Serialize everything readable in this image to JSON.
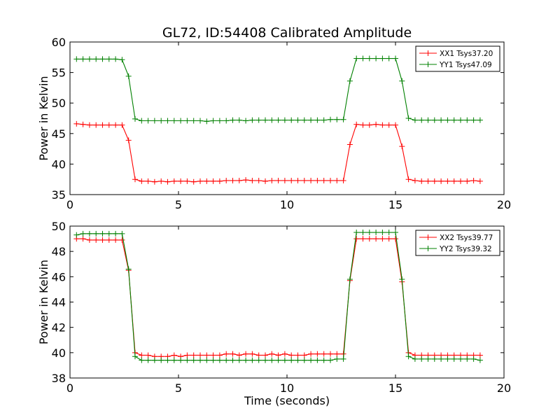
{
  "figure": {
    "title": "GL72, ID:54408 Calibrated Amplitude",
    "background": "#ffffff"
  },
  "chart_data": [
    {
      "type": "line",
      "title": "GL72, ID:54408 Calibrated Amplitude",
      "xlabel": "",
      "ylabel": "Power in Kelvin",
      "xlim": [
        0,
        20
      ],
      "ylim": [
        35,
        60
      ],
      "xticks": [
        0,
        5,
        10,
        15,
        20
      ],
      "yticks": [
        35,
        40,
        45,
        50,
        55,
        60
      ],
      "grid": false,
      "legend_position": "top-right",
      "marker": "plus",
      "x": [
        0.3,
        0.6,
        0.9,
        1.2,
        1.5,
        1.8,
        2.1,
        2.4,
        2.7,
        3.0,
        3.3,
        3.6,
        3.9,
        4.2,
        4.5,
        4.8,
        5.1,
        5.4,
        5.7,
        6.0,
        6.3,
        6.6,
        6.9,
        7.2,
        7.5,
        7.8,
        8.1,
        8.4,
        8.7,
        9.0,
        9.3,
        9.6,
        9.9,
        10.2,
        10.5,
        10.8,
        11.1,
        11.4,
        11.7,
        12.0,
        12.3,
        12.6,
        12.9,
        13.2,
        13.5,
        13.8,
        14.1,
        14.4,
        14.7,
        15.0,
        15.3,
        15.6,
        15.9,
        16.2,
        16.5,
        16.8,
        17.1,
        17.4,
        17.7,
        18.0,
        18.3,
        18.6,
        18.9
      ],
      "series": [
        {
          "name": "XX1 Tsys37.20",
          "color": "#ff0000",
          "values": [
            46.6,
            46.5,
            46.4,
            46.4,
            46.4,
            46.4,
            46.4,
            46.4,
            43.9,
            37.5,
            37.2,
            37.2,
            37.1,
            37.2,
            37.1,
            37.2,
            37.2,
            37.2,
            37.1,
            37.2,
            37.2,
            37.2,
            37.2,
            37.3,
            37.3,
            37.3,
            37.4,
            37.3,
            37.3,
            37.2,
            37.3,
            37.3,
            37.3,
            37.3,
            37.3,
            37.3,
            37.3,
            37.3,
            37.3,
            37.3,
            37.3,
            37.3,
            43.2,
            46.5,
            46.4,
            46.4,
            46.5,
            46.4,
            46.4,
            46.4,
            42.9,
            37.5,
            37.3,
            37.2,
            37.2,
            37.2,
            37.2,
            37.2,
            37.2,
            37.2,
            37.2,
            37.3,
            37.2
          ]
        },
        {
          "name": "YY1 Tsys47.09",
          "color": "#008000",
          "values": [
            57.2,
            57.2,
            57.2,
            57.2,
            57.2,
            57.2,
            57.2,
            57.1,
            54.4,
            47.4,
            47.1,
            47.1,
            47.1,
            47.1,
            47.1,
            47.1,
            47.1,
            47.1,
            47.1,
            47.1,
            47.0,
            47.1,
            47.1,
            47.1,
            47.2,
            47.2,
            47.1,
            47.2,
            47.2,
            47.2,
            47.2,
            47.2,
            47.2,
            47.2,
            47.2,
            47.2,
            47.2,
            47.2,
            47.2,
            47.3,
            47.3,
            47.3,
            53.6,
            57.3,
            57.3,
            57.3,
            57.3,
            57.3,
            57.3,
            57.3,
            53.6,
            47.5,
            47.2,
            47.2,
            47.2,
            47.2,
            47.2,
            47.2,
            47.2,
            47.2,
            47.2,
            47.2,
            47.2
          ]
        }
      ]
    },
    {
      "type": "line",
      "title": "",
      "xlabel": "Time (seconds)",
      "ylabel": "Power in Kelvin",
      "xlim": [
        0,
        20
      ],
      "ylim": [
        38,
        50
      ],
      "xticks": [
        0,
        5,
        10,
        15,
        20
      ],
      "yticks": [
        38,
        40,
        42,
        44,
        46,
        48,
        50
      ],
      "grid": false,
      "legend_position": "top-right",
      "marker": "plus",
      "x": [
        0.3,
        0.6,
        0.9,
        1.2,
        1.5,
        1.8,
        2.1,
        2.4,
        2.7,
        3.0,
        3.3,
        3.6,
        3.9,
        4.2,
        4.5,
        4.8,
        5.1,
        5.4,
        5.7,
        6.0,
        6.3,
        6.6,
        6.9,
        7.2,
        7.5,
        7.8,
        8.1,
        8.4,
        8.7,
        9.0,
        9.3,
        9.6,
        9.9,
        10.2,
        10.5,
        10.8,
        11.1,
        11.4,
        11.7,
        12.0,
        12.3,
        12.6,
        12.9,
        13.2,
        13.5,
        13.8,
        14.1,
        14.4,
        14.7,
        15.0,
        15.3,
        15.6,
        15.9,
        16.2,
        16.5,
        16.8,
        17.1,
        17.4,
        17.7,
        18.0,
        18.3,
        18.6,
        18.9
      ],
      "series": [
        {
          "name": "XX2 Tsys39.77",
          "color": "#ff0000",
          "values": [
            49.0,
            49.0,
            48.9,
            48.9,
            48.9,
            48.9,
            48.9,
            48.9,
            46.5,
            40.0,
            39.8,
            39.8,
            39.7,
            39.7,
            39.7,
            39.8,
            39.7,
            39.8,
            39.8,
            39.8,
            39.8,
            39.8,
            39.8,
            39.9,
            39.9,
            39.8,
            39.9,
            39.9,
            39.8,
            39.8,
            39.9,
            39.8,
            39.9,
            39.8,
            39.8,
            39.8,
            39.9,
            39.9,
            39.9,
            39.9,
            39.9,
            39.9,
            45.7,
            49.0,
            49.0,
            49.0,
            49.0,
            49.0,
            49.0,
            49.0,
            45.6,
            40.0,
            39.8,
            39.8,
            39.8,
            39.8,
            39.8,
            39.8,
            39.8,
            39.8,
            39.8,
            39.8,
            39.8
          ]
        },
        {
          "name": "YY2 Tsys39.32",
          "color": "#008000",
          "values": [
            49.3,
            49.4,
            49.4,
            49.4,
            49.4,
            49.4,
            49.4,
            49.4,
            46.6,
            39.7,
            39.4,
            39.4,
            39.4,
            39.4,
            39.4,
            39.4,
            39.4,
            39.4,
            39.4,
            39.4,
            39.4,
            39.4,
            39.4,
            39.4,
            39.4,
            39.4,
            39.4,
            39.4,
            39.4,
            39.4,
            39.4,
            39.4,
            39.4,
            39.4,
            39.4,
            39.4,
            39.4,
            39.4,
            39.4,
            39.4,
            39.5,
            39.5,
            45.8,
            49.5,
            49.5,
            49.5,
            49.5,
            49.5,
            49.5,
            49.5,
            45.8,
            39.7,
            39.5,
            39.5,
            39.5,
            39.5,
            39.5,
            39.5,
            39.5,
            39.5,
            39.5,
            39.5,
            39.4
          ]
        }
      ]
    }
  ]
}
